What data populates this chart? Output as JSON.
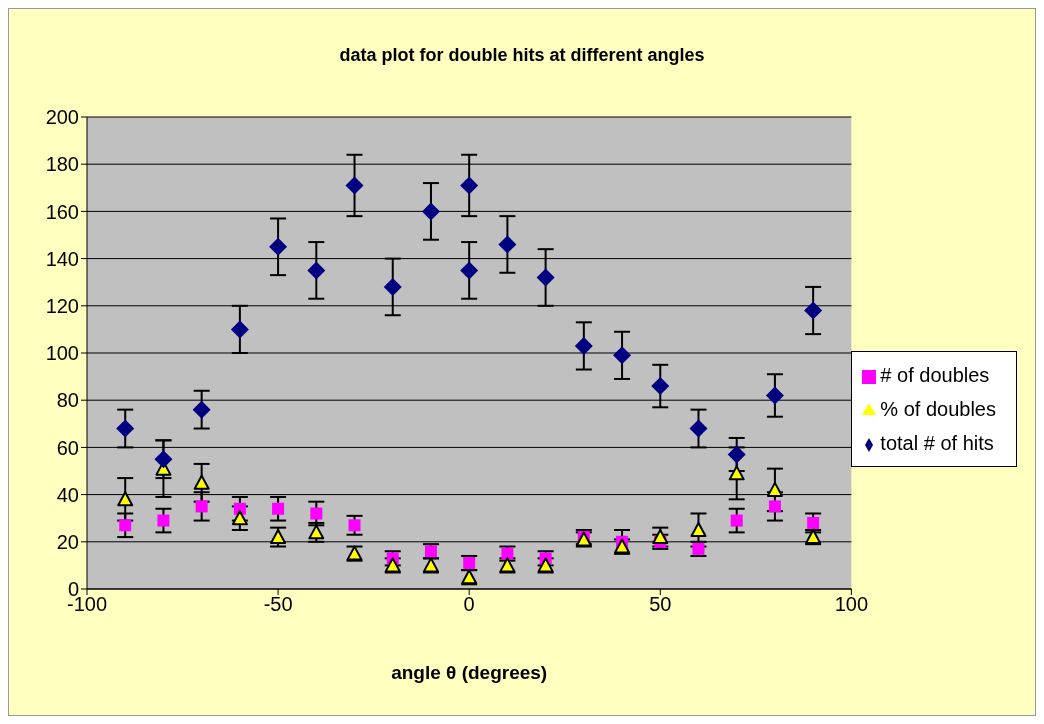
{
  "chart_data": {
    "type": "scatter",
    "title": "data plot for double hits at different angles",
    "xlabel": "angle θ (degrees)",
    "xlim": [
      -100,
      100
    ],
    "xticks": [
      -100,
      -50,
      0,
      50,
      100
    ],
    "ylim": [
      0,
      200
    ],
    "yticks": [
      0,
      20,
      40,
      60,
      80,
      100,
      120,
      140,
      160,
      180,
      200
    ],
    "grid": "y",
    "legend": "right",
    "series": [
      {
        "name": "# of doubles",
        "color": "#ff00ff",
        "marker": "square",
        "x": [
          -90,
          -80,
          -70,
          -60,
          -50,
          -40,
          -30,
          -20,
          -10,
          0,
          10,
          20,
          30,
          40,
          50,
          60,
          70,
          80,
          90
        ],
        "values": [
          27,
          29,
          35,
          34,
          34,
          32,
          27,
          13,
          16,
          11,
          15,
          13,
          22,
          20,
          20,
          17,
          29,
          35,
          28
        ],
        "errors": [
          5,
          5,
          6,
          5,
          5,
          5,
          4,
          3,
          3,
          3,
          3,
          3,
          3,
          5,
          3,
          3,
          5,
          6,
          4
        ]
      },
      {
        "name": "% of doubles",
        "color": "#ffff00",
        "marker": "triangle",
        "x": [
          -90,
          -80,
          -70,
          -60,
          -50,
          -40,
          -30,
          -20,
          -10,
          0,
          10,
          20,
          30,
          40,
          50,
          60,
          70,
          80,
          90
        ],
        "values": [
          38,
          51,
          45,
          30,
          22,
          24,
          15,
          10,
          10,
          5,
          10,
          10,
          21,
          18,
          22,
          25,
          49,
          42,
          22
        ],
        "errors": [
          9,
          12,
          8,
          5,
          4,
          4,
          3,
          3,
          3,
          3,
          3,
          3,
          3,
          3,
          4,
          7,
          11,
          9,
          3
        ]
      },
      {
        "name": "total # of hits",
        "color": "#000080",
        "marker": "diamond",
        "x": [
          -90,
          -80,
          -70,
          -60,
          -50,
          -40,
          -30,
          -20,
          -10,
          0,
          0,
          10,
          20,
          30,
          40,
          50,
          60,
          70,
          80,
          90
        ],
        "values": [
          68,
          55,
          76,
          110,
          145,
          135,
          171,
          128,
          160,
          171,
          135,
          146,
          132,
          103,
          99,
          86,
          68,
          57,
          82,
          118
        ],
        "errors": [
          8,
          8,
          8,
          10,
          12,
          12,
          13,
          12,
          12,
          13,
          12,
          12,
          12,
          10,
          10,
          9,
          8,
          7,
          9,
          10
        ]
      }
    ]
  }
}
